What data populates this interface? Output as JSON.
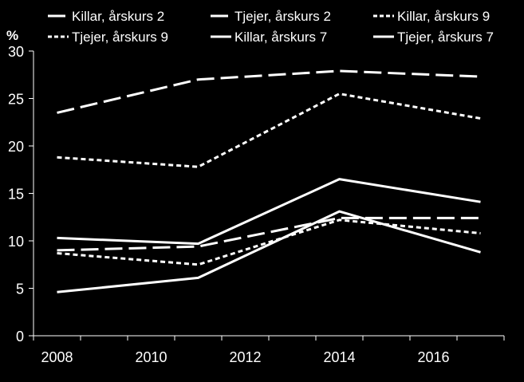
{
  "chart_data": {
    "type": "line",
    "ylabel": "%",
    "ylim": [
      0,
      30
    ],
    "yticks": [
      0,
      5,
      10,
      15,
      20,
      25,
      30
    ],
    "xlim": [
      2007.5,
      2017.5
    ],
    "xticks": [
      2008,
      2010,
      2012,
      2014,
      2016
    ],
    "legend_position": "top",
    "series": [
      {
        "name": "Killar, årskurs 2",
        "dash": "long",
        "x": [
          2008,
          2011,
          2014,
          2017
        ],
        "values": [
          9.0,
          9.4,
          12.4,
          12.4
        ]
      },
      {
        "name": "Tjejer, årskurs 2",
        "dash": "long",
        "x": [
          2008,
          2011,
          2014,
          2017
        ],
        "values": [
          23.5,
          27.0,
          27.9,
          27.3
        ]
      },
      {
        "name": "Killar, årskurs 9",
        "dash": "short",
        "x": [
          2008,
          2011,
          2014,
          2017
        ],
        "values": [
          8.7,
          7.5,
          12.2,
          10.8
        ]
      },
      {
        "name": "Tjejer, årskurs 9",
        "dash": "short",
        "x": [
          2008,
          2011,
          2014,
          2017
        ],
        "values": [
          18.8,
          17.8,
          25.5,
          22.9
        ]
      },
      {
        "name": "Killar, årskurs 7",
        "dash": "solid",
        "x": [
          2008,
          2011,
          2014,
          2017
        ],
        "values": [
          4.6,
          6.1,
          13.1,
          8.8
        ]
      },
      {
        "name": "Tjejer, årskurs 7",
        "dash": "solid",
        "x": [
          2008,
          2011,
          2014,
          2017
        ],
        "values": [
          10.3,
          9.7,
          16.5,
          14.1
        ]
      }
    ]
  },
  "colors": {
    "background": "#000000",
    "line": "#ffffff"
  }
}
